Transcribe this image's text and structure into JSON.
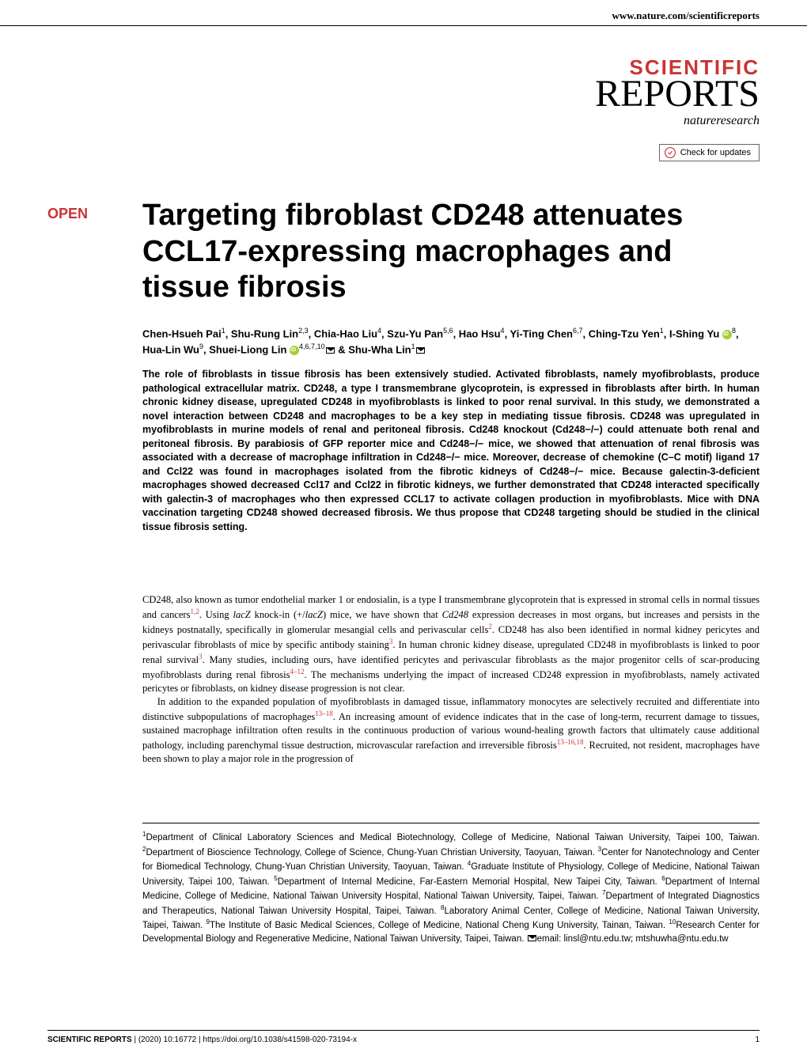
{
  "header": {
    "url": "www.nature.com/scientificreports"
  },
  "logo": {
    "scientific": "SCIENTIFIC",
    "reports": "REPORTS",
    "nature": "natureresearch",
    "check_updates": "Check for updates"
  },
  "open_badge": "OPEN",
  "title": "Targeting fibroblast CD248 attenuates CCL17-expressing macrophages and tissue fibrosis",
  "authors_html": "Chen-Hsueh Pai<sup>1</sup>, Shu-Rung Lin<sup>2,3</sup>, Chia-Hao Liu<sup>4</sup>, Szu-Yu Pan<sup>5,6</sup>, Hao Hsu<sup>4</sup>, Yi-Ting Chen<sup>6,7</sup>, Ching-Tzu Yen<sup>1</sup>, I-Shing Yu <span class=\"orcid-icon\" data-name=\"orcid-icon\" data-interactable=\"false\"></span><sup>8</sup>, Hua-Lin Wu<sup>9</sup>, Shuei-Liong Lin <span class=\"orcid-icon\" data-name=\"orcid-icon\" data-interactable=\"false\"></span><sup>4,6,7,10</sup><span class=\"mail-icon\" data-name=\"mail-icon\" data-interactable=\"false\"></span> & Shu-Wha Lin<sup>1</sup><span class=\"mail-icon\" data-name=\"mail-icon\" data-interactable=\"false\"></span>",
  "abstract": "The role of fibroblasts in tissue fibrosis has been extensively studied. Activated fibroblasts, namely myofibroblasts, produce pathological extracellular matrix. CD248, a type I transmembrane glycoprotein, is expressed in fibroblasts after birth. In human chronic kidney disease, upregulated CD248 in myofibroblasts is linked to poor renal survival. In this study, we demonstrated a novel interaction between CD248 and macrophages to be a key step in mediating tissue fibrosis. CD248 was upregulated in myofibroblasts in murine models of renal and peritoneal fibrosis. Cd248 knockout (Cd248−/−) could attenuate both renal and peritoneal fibrosis. By parabiosis of GFP reporter mice and Cd248−/− mice, we showed that attenuation of renal fibrosis was associated with a decrease of macrophage infiltration in Cd248−/− mice. Moreover, decrease of chemokine (C–C motif) ligand 17 and Ccl22 was found in macrophages isolated from the fibrotic kidneys of Cd248−/− mice. Because galectin-3-deficient macrophages showed decreased Ccl17 and Ccl22 in fibrotic kidneys, we further demonstrated that CD248 interacted specifically with galectin-3 of macrophages who then expressed CCL17 to activate collagen production in myofibroblasts. Mice with DNA vaccination targeting CD248 showed decreased fibrosis. We thus propose that CD248 targeting should be studied in the clinical tissue fibrosis setting.",
  "body_p1": "CD248, also known as tumor endothelial marker 1 or endosialin, is a type I transmembrane glycoprotein that is expressed in stromal cells in normal tissues and cancers<sup>1,2</sup>. Using <span class=\"italic\">lacZ</span> knock-in (+/<span class=\"italic\">lacZ</span>) mice, we have shown that <span class=\"italic\">Cd248</span> expression decreases in most organs, but increases and persists in the kidneys postnatally, specifically in glomerular mesangial cells and perivascular cells<sup>2</sup>. CD248 has also been identified in normal kidney pericytes and perivascular fibroblasts of mice by specific antibody staining<sup>3</sup>. In human chronic kidney disease, upregulated CD248 in myofibroblasts is linked to poor renal survival<sup>3</sup>. Many studies, including ours, have identified pericytes and perivascular fibroblasts as the major progenitor cells of scar-producing myofibroblasts during renal fibrosis<sup>4–12</sup>. The mechanisms underlying the impact of increased CD248 expression in myofibroblasts, namely activated pericytes or fibroblasts, on kidney disease progression is not clear.",
  "body_p2": "In addition to the expanded population of myofibroblasts in damaged tissue, inflammatory monocytes are selectively recruited and differentiate into distinctive subpopulations of macrophages<sup>13–18</sup>. An increasing amount of evidence indicates that in the case of long-term, recurrent damage to tissues, sustained macrophage infiltration often results in the continuous production of various wound-healing growth factors that ultimately cause additional pathology, including parenchymal tissue destruction, microvascular rarefaction and irreversible fibrosis<sup>13–16,18</sup>. Recruited, not resident, macrophages have been shown to play a major role in the progression of",
  "affiliations": "<sup>1</sup>Department of Clinical Laboratory Sciences and Medical Biotechnology, College of Medicine, National Taiwan University, Taipei 100, Taiwan. <sup>2</sup>Department of Bioscience Technology, College of Science, Chung-Yuan Christian University, Taoyuan, Taiwan. <sup>3</sup>Center for Nanotechnology and Center for Biomedical Technology, Chung-Yuan Christian University, Taoyuan, Taiwan. <sup>4</sup>Graduate Institute of Physiology, College of Medicine, National Taiwan University, Taipei 100, Taiwan. <sup>5</sup>Department of Internal Medicine, Far-Eastern Memorial Hospital, New Taipei City, Taiwan. <sup>6</sup>Department of Internal Medicine, College of Medicine, National Taiwan University Hospital, National Taiwan University, Taipei, Taiwan. <sup>7</sup>Department of Integrated Diagnostics and Therapeutics, National Taiwan University Hospital, Taipei, Taiwan. <sup>8</sup>Laboratory Animal Center, College of Medicine, National Taiwan University, Taipei, Taiwan. <sup>9</sup>The Institute of Basic Medical Sciences, College of Medicine, National Cheng Kung University, Tainan, Taiwan. <sup>10</sup>Research Center for Developmental Biology and Regenerative Medicine, National Taiwan University, Taipei, Taiwan. <span class=\"mail-icon\" data-name=\"mail-icon\" data-interactable=\"false\"></span>email: linsl@ntu.edu.tw; mtshuwha@ntu.edu.tw",
  "footer": {
    "journal": "SCIENTIFIC REPORTS",
    "sep": " | ",
    "citation": "(2020) 10:16772",
    "doi": "| https://doi.org/10.1038/s41598-020-73194-x",
    "page": "1"
  },
  "colors": {
    "accent": "#c93434",
    "orcid": "#a6ce39",
    "text": "#000000",
    "bg": "#ffffff"
  }
}
